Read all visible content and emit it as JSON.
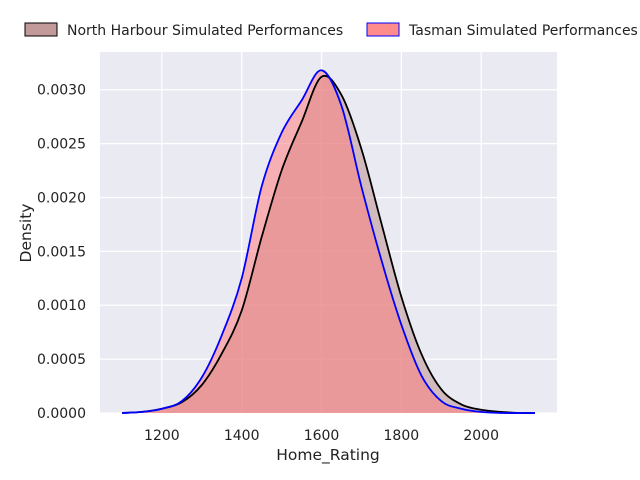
{
  "chart_data": {
    "type": "area",
    "title": "",
    "xlabel": "Home_Rating",
    "ylabel": "Density",
    "xlim": [
      1045,
      2190
    ],
    "ylim": [
      0,
      0.00335
    ],
    "xticks": [
      1200,
      1400,
      1600,
      1800,
      2000
    ],
    "xtick_labels": [
      "1200",
      "1400",
      "1600",
      "1800",
      "2000"
    ],
    "yticks": [
      0,
      0.0005,
      0.001,
      0.0015,
      0.002,
      0.0025,
      0.003
    ],
    "ytick_labels": [
      "0.0000",
      "0.0005",
      "0.0010",
      "0.0015",
      "0.0020",
      "0.0025",
      "0.0030"
    ],
    "grid": true,
    "legend_position": "top",
    "series": [
      {
        "name": "North Harbour Simulated Performances",
        "line_color": "#000000",
        "fill_color": "#bc8f8f",
        "x": [
          1100,
          1150,
          1200,
          1250,
          1300,
          1350,
          1400,
          1450,
          1500,
          1550,
          1600,
          1650,
          1700,
          1750,
          1800,
          1850,
          1900,
          1950,
          2000,
          2050,
          2100,
          2135
        ],
        "values": [
          0.0,
          1e-05,
          4e-05,
          0.0001,
          0.00026,
          0.00055,
          0.00095,
          0.00163,
          0.00225,
          0.0027,
          0.00312,
          0.00295,
          0.00245,
          0.00176,
          0.00108,
          0.00055,
          0.00022,
          8e-05,
          3e-05,
          1e-05,
          0.0,
          0.0
        ]
      },
      {
        "name": "Tasman Simulated Performances",
        "line_color": "#0000ff",
        "fill_color": "#ff7f7f",
        "x": [
          1100,
          1150,
          1200,
          1250,
          1300,
          1350,
          1400,
          1450,
          1500,
          1550,
          1600,
          1650,
          1700,
          1750,
          1800,
          1850,
          1900,
          1950,
          2000,
          2050,
          2100,
          2135
        ],
        "values": [
          0.0,
          1e-05,
          4e-05,
          0.00011,
          0.00033,
          0.00072,
          0.00125,
          0.0021,
          0.0026,
          0.0029,
          0.00318,
          0.00285,
          0.0021,
          0.00142,
          0.00082,
          0.00035,
          0.00011,
          4e-05,
          1e-05,
          0.0,
          0.0,
          0.0
        ]
      }
    ]
  }
}
